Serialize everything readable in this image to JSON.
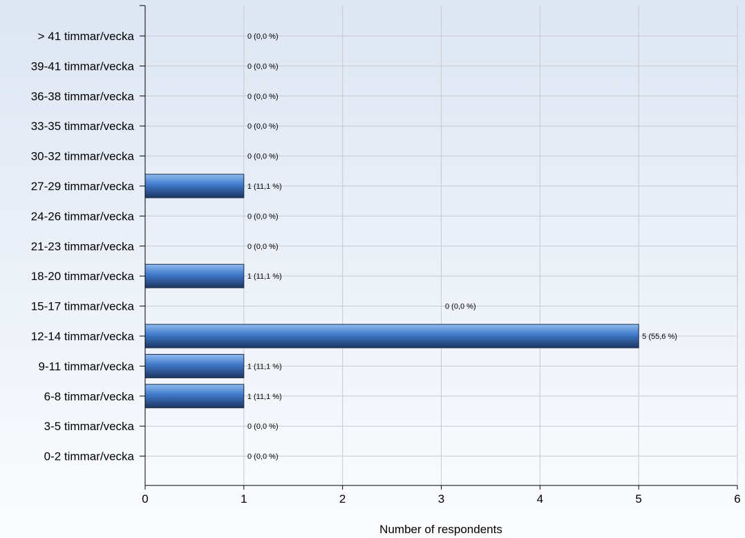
{
  "chart_data": {
    "type": "bar",
    "orientation": "horizontal",
    "categories": [
      "> 41 timmar/vecka",
      "39-41 timmar/vecka",
      "36-38 timmar/vecka",
      "33-35 timmar/vecka",
      "30-32 timmar/vecka",
      "27-29 timmar/vecka",
      "24-26 timmar/vecka",
      "21-23 timmar/vecka",
      "18-20 timmar/vecka",
      "15-17 timmar/vecka",
      "12-14 timmar/vecka",
      "9-11 timmar/vecka",
      "6-8 timmar/vecka",
      "3-5 timmar/vecka",
      "0-2 timmar/vecka"
    ],
    "values": [
      0,
      0,
      0,
      0,
      0,
      1,
      0,
      0,
      1,
      0,
      5,
      1,
      1,
      0,
      0
    ],
    "data_labels": [
      "0 (0,0 %)",
      "0 (0,0 %)",
      "0 (0,0 %)",
      "0 (0,0 %)",
      "0 (0,0 %)",
      "1 (11,1 %)",
      "0 (0,0 %)",
      "0 (0,0 %)",
      "1 (11,1 %)",
      "0 (0,0 %)",
      "5 (55,6 %)",
      "1 (11,1 %)",
      "1 (11,1 %)",
      "0 (0,0 %)",
      "0 (0,0 %)"
    ],
    "xlabel": "Number of respondents",
    "xlim": [
      0,
      6
    ],
    "xticks": [
      0,
      1,
      2,
      3,
      4,
      5,
      6
    ],
    "grid": true,
    "colors": {
      "bar_light": "#8fbcf0",
      "bar_mid": "#3f78c8",
      "bar_dark": "#1c3560",
      "bg_top": "#dde6f3",
      "bg_bottom": "#fbfcfe",
      "grid": "#c4cad3"
    }
  }
}
